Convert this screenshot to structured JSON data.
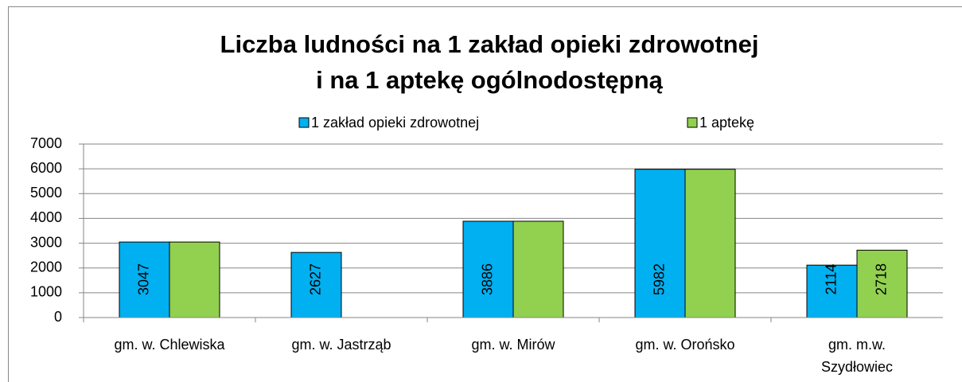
{
  "chart_data": {
    "type": "bar",
    "title": [
      "Liczba ludności na 1 zakład opieki zdrowotnej",
      "i na 1 aptekę ogólnodostępną"
    ],
    "categories": [
      "gm. w. Chlewiska",
      "gm. w. Jastrząb",
      "gm. w. Mirów",
      "gm. w. Orońsko",
      "gm. m.w. Szydłowiec"
    ],
    "series": [
      {
        "name": "1 zakład opieki zdrowotnej",
        "color": "#00b0f0",
        "values": [
          3047,
          2627,
          3886,
          5982,
          2114
        ],
        "value_labels": [
          "3047",
          "2627",
          "3886",
          "5982",
          "2114"
        ]
      },
      {
        "name": "1 aptekę",
        "color": "#92d050",
        "values": [
          3047,
          null,
          3886,
          5982,
          2718
        ],
        "value_labels": [
          null,
          null,
          null,
          null,
          "2718"
        ]
      }
    ],
    "ylim": [
      0,
      7000
    ],
    "yticks": [
      0,
      1000,
      2000,
      3000,
      4000,
      5000,
      6000,
      7000
    ],
    "grid": true
  }
}
